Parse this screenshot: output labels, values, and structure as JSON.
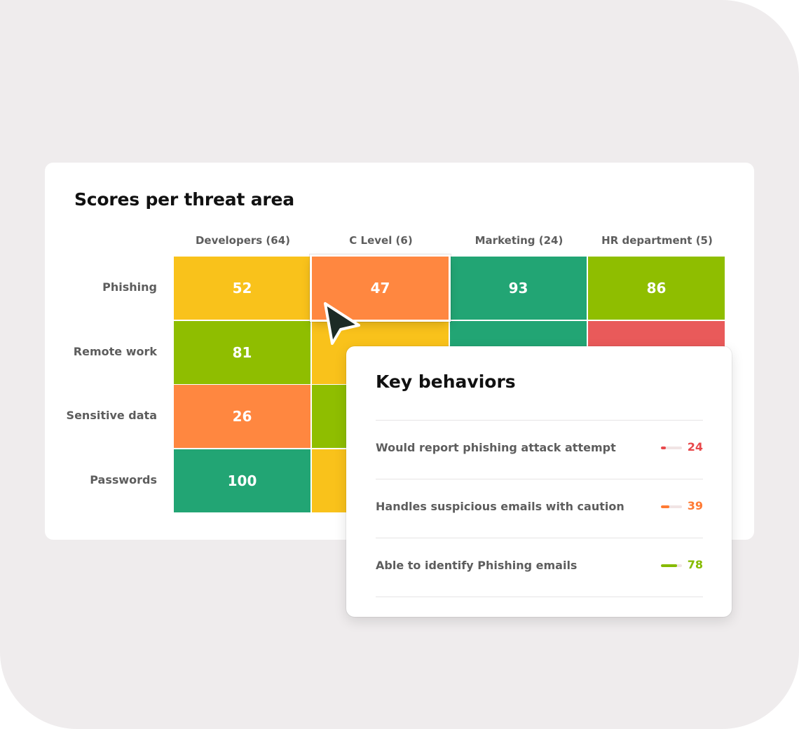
{
  "heatmap": {
    "title": "Scores per threat area",
    "columns": [
      "Developers (64)",
      "C Level (6)",
      "Marketing (24)",
      "HR department (5)"
    ],
    "rows": [
      "Phishing",
      "Remote work",
      "Sensitive data",
      "Passwords"
    ],
    "cells": [
      [
        {
          "value": "52",
          "color": "#f9c21b"
        },
        {
          "value": "47",
          "color": "#ff8740"
        },
        {
          "value": "93",
          "color": "#22a574"
        },
        {
          "value": "86",
          "color": "#8fbe00"
        }
      ],
      [
        {
          "value": "81",
          "color": "#8fbe00"
        },
        {
          "value": "",
          "color": "#f9c21b"
        },
        {
          "value": "",
          "color": "#22a574"
        },
        {
          "value": "",
          "color": "#e95a5a"
        }
      ],
      [
        {
          "value": "26",
          "color": "#ff8740"
        },
        {
          "value": "",
          "color": "#8fbe00"
        },
        {
          "value": "",
          "color": "#f9c21b"
        },
        {
          "value": "",
          "color": "#f9c21b"
        }
      ],
      [
        {
          "value": "100",
          "color": "#22a574"
        },
        {
          "value": "",
          "color": "#f9c21b"
        },
        {
          "value": "",
          "color": "#f9c21b"
        },
        {
          "value": "",
          "color": "#f9c21b"
        }
      ]
    ],
    "selected_cell": {
      "row": 0,
      "col": 1
    }
  },
  "key_behaviors": {
    "title": "Key behaviors",
    "items": [
      {
        "label": "Would report phishing attack attempt",
        "value": "24",
        "level": 0.24,
        "color": "#e8484b"
      },
      {
        "label": "Handles suspicious emails with caution",
        "value": "39",
        "level": 0.39,
        "color": "#ff7a33"
      },
      {
        "label": "Able to identify Phishing emails",
        "value": "78",
        "level": 0.78,
        "color": "#86bb00"
      }
    ]
  },
  "colors": {
    "background": "#efeced",
    "card": "#ffffff",
    "cursor": "#1d2b25"
  },
  "icons": {
    "cursor": "pointer-arrow-icon"
  }
}
